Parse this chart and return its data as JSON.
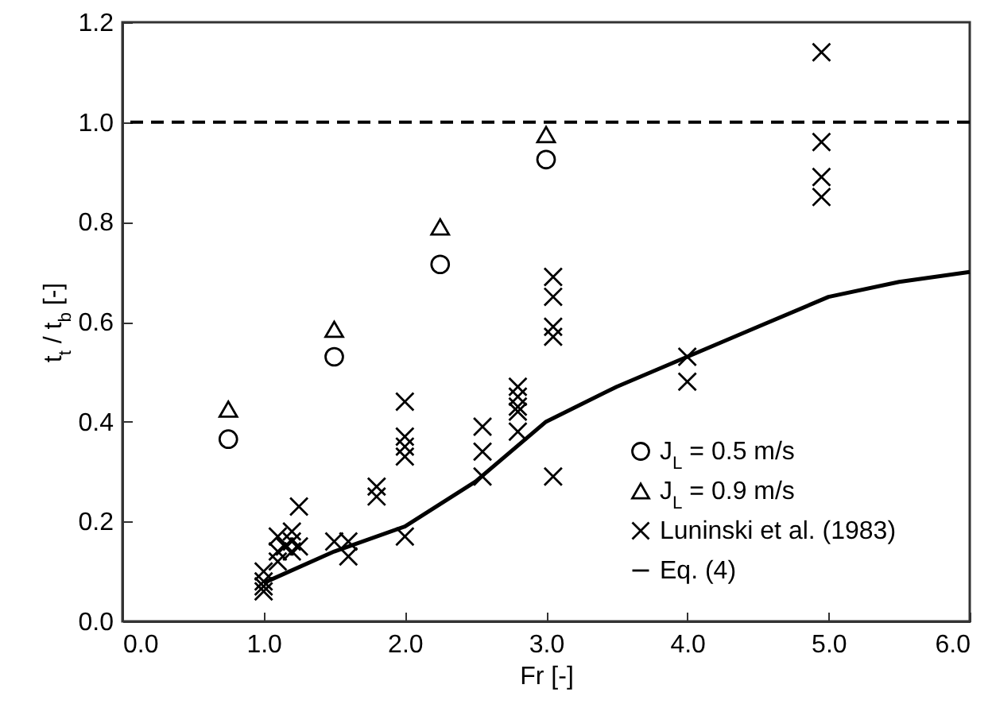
{
  "chart_data": {
    "type": "scatter",
    "xlabel": "Fr [-]",
    "ylabel": "t$_{t}$ / t$_{b}$ [-]",
    "xlim": [
      0,
      6
    ],
    "ylim": [
      0,
      1.2
    ],
    "xticks": [
      {
        "value": 0,
        "label": "0.0"
      },
      {
        "value": 1,
        "label": "1.0"
      },
      {
        "value": 2,
        "label": "2.0"
      },
      {
        "value": 3,
        "label": "3.0"
      },
      {
        "value": 4,
        "label": "4.0"
      },
      {
        "value": 5,
        "label": "5.0"
      },
      {
        "value": 6,
        "label": "6.0"
      }
    ],
    "yticks": [
      {
        "value": 0,
        "label": "0.0"
      },
      {
        "value": 0.2,
        "label": "0.2"
      },
      {
        "value": 0.4,
        "label": "0.4"
      },
      {
        "value": 0.6,
        "label": "0.6"
      },
      {
        "value": 0.8,
        "label": "0.8"
      },
      {
        "value": 1,
        "label": "1.0"
      },
      {
        "value": 1.2,
        "label": "1.2"
      }
    ],
    "grid": false,
    "legend": "bottom right",
    "ref_lines": [
      {
        "axis": "y",
        "value": 1.0,
        "color": "#000000",
        "line_style": "dashed"
      }
    ],
    "series": [
      {
        "name": "J$_{L}$ = 0.5 m/s",
        "marker": "circle",
        "color": "#000000",
        "x": [
          0.75,
          1.5,
          2.25,
          3.0
        ],
        "values": [
          0.365,
          0.53,
          0.715,
          0.925
        ]
      },
      {
        "name": "J$_{L}$ = 0.9 m/s",
        "marker": "triangle",
        "color": "#000000",
        "x": [
          0.75,
          1.5,
          2.25,
          3.0
        ],
        "values": [
          0.425,
          0.585,
          0.79,
          0.975
        ]
      },
      {
        "name": "Luninski et al. (1983)",
        "marker": "cross",
        "color": "#000000",
        "x": [
          1.0,
          1.0,
          1.0,
          1.0,
          1.1,
          1.1,
          1.1,
          1.15,
          1.2,
          1.2,
          1.2,
          1.25,
          1.25,
          1.5,
          1.6,
          1.6,
          1.8,
          1.8,
          2.0,
          2.0,
          2.0,
          2.0,
          2.0,
          2.55,
          2.55,
          2.55,
          2.8,
          2.8,
          2.8,
          2.8,
          2.8,
          3.05,
          3.05,
          3.05,
          3.05,
          3.05,
          4.0,
          4.0,
          4.95,
          4.95,
          4.95,
          4.95
        ],
        "values": [
          0.1,
          0.08,
          0.07,
          0.06,
          0.17,
          0.14,
          0.12,
          0.15,
          0.18,
          0.16,
          0.14,
          0.23,
          0.15,
          0.16,
          0.16,
          0.13,
          0.27,
          0.25,
          0.44,
          0.37,
          0.35,
          0.33,
          0.17,
          0.39,
          0.34,
          0.29,
          0.47,
          0.45,
          0.43,
          0.42,
          0.38,
          0.69,
          0.65,
          0.59,
          0.57,
          0.29,
          0.53,
          0.48,
          1.14,
          0.96,
          0.89,
          0.85
        ]
      },
      {
        "name": "Eq. (4)",
        "type": "line",
        "line_style": "solid",
        "color": "#000000",
        "x": [
          1.0,
          1.5,
          2.0,
          2.5,
          3.0,
          3.5,
          4.0,
          4.5,
          5.0,
          5.5,
          6.0
        ],
        "values": [
          0.077,
          0.14,
          0.19,
          0.28,
          0.4,
          0.47,
          0.53,
          0.59,
          0.65,
          0.68,
          0.7
        ]
      }
    ]
  }
}
